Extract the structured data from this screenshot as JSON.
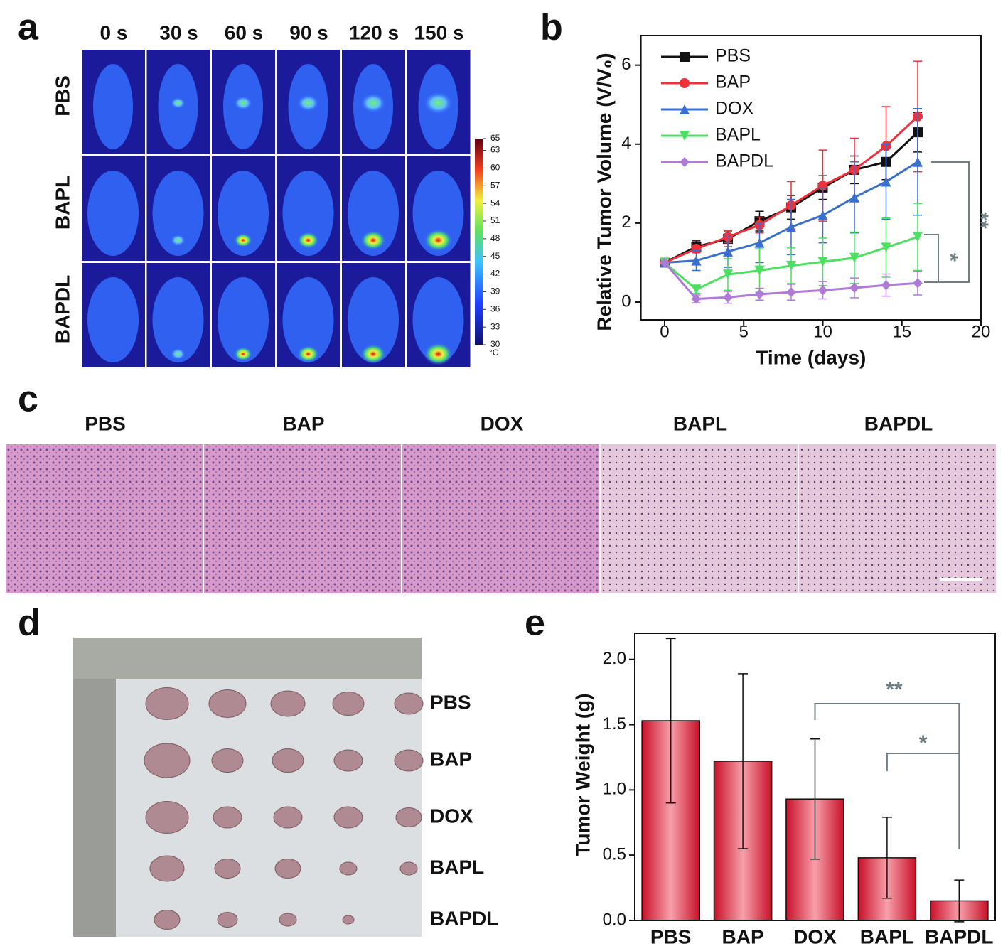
{
  "panel_a": {
    "label": "a",
    "times": [
      "0 s",
      "30 s",
      "60 s",
      "90 s",
      "120 s",
      "150 s"
    ],
    "groups": [
      "PBS",
      "BAPL",
      "BAPDL"
    ],
    "colorbar": {
      "ticks": [
        65,
        63,
        60,
        57,
        54,
        51,
        48,
        45,
        42,
        39,
        36,
        33,
        30
      ],
      "unit": "°C"
    }
  },
  "chart_data": [
    {
      "type": "line",
      "label": "b",
      "x_label": "Time (days)",
      "y_label": "Relative Tumor Volume (V/V₀)",
      "x": [
        0,
        2,
        4,
        6,
        8,
        10,
        12,
        14,
        16
      ],
      "xlim": [
        -1.5,
        20
      ],
      "xticks": [
        0,
        5,
        10,
        15,
        20
      ],
      "ylim": [
        -0.45,
        6.75
      ],
      "yticks": [
        0,
        2,
        4,
        6
      ],
      "legend": "top-left",
      "annotations": [
        "**",
        "*"
      ],
      "series": [
        {
          "name": "PBS",
          "color": "#111111",
          "marker": "square",
          "values": [
            1,
            1.4,
            1.6,
            2.05,
            2.4,
            2.9,
            3.35,
            3.55,
            4.3
          ],
          "errors": [
            0,
            0.15,
            0.2,
            0.25,
            0.3,
            0.3,
            0.35,
            0.45,
            0.5
          ]
        },
        {
          "name": "BAP",
          "color": "#f0303a",
          "marker": "circle",
          "values": [
            1,
            1.35,
            1.65,
            1.95,
            2.45,
            2.95,
            3.35,
            3.95,
            4.7
          ],
          "errors": [
            0,
            0.1,
            0.15,
            0.2,
            0.6,
            0.9,
            0.8,
            1.0,
            1.4
          ]
        },
        {
          "name": "DOX",
          "color": "#3a6fd0",
          "marker": "triangle",
          "values": [
            1,
            1.05,
            1.28,
            1.5,
            1.9,
            2.2,
            2.65,
            3.05,
            3.55
          ],
          "errors": [
            0,
            0.25,
            0.4,
            0.5,
            0.7,
            0.7,
            0.9,
            0.95,
            1.35
          ]
        },
        {
          "name": "BAPL",
          "color": "#4de060",
          "marker": "triangle-down",
          "values": [
            1,
            0.32,
            0.7,
            0.8,
            0.92,
            1.02,
            1.12,
            1.38,
            1.65
          ],
          "errors": [
            0,
            0.1,
            0.4,
            0.55,
            0.45,
            0.6,
            0.65,
            0.75,
            0.85
          ]
        },
        {
          "name": "BAPDL",
          "color": "#b07ad8",
          "marker": "diamond",
          "values": [
            1,
            0.08,
            0.12,
            0.2,
            0.25,
            0.3,
            0.36,
            0.43,
            0.48
          ],
          "errors": [
            0,
            0.1,
            0.15,
            0.15,
            0.2,
            0.22,
            0.25,
            0.28,
            0.3
          ]
        }
      ]
    },
    {
      "type": "bar",
      "label": "e",
      "y_label": "Tumor Weight (g)",
      "categories": [
        "PBS",
        "BAP",
        "DOX",
        "BAPL",
        "BAPDL"
      ],
      "values": [
        1.53,
        1.22,
        0.93,
        0.48,
        0.15
      ],
      "errors": [
        0.63,
        0.67,
        0.46,
        0.31,
        0.16
      ],
      "color": "#e8344a",
      "ylim": [
        0,
        2.2
      ],
      "yticks": [
        {
          "value": 0,
          "label": "0.0"
        },
        0.5,
        {
          "value": 1,
          "label": "1.0"
        },
        1.5,
        {
          "value": 2,
          "label": "2.0"
        }
      ],
      "annotations": [
        "**",
        "*"
      ]
    }
  ],
  "panel_c": {
    "label": "c",
    "groups": [
      "PBS",
      "BAP",
      "DOX",
      "BAPL",
      "BAPDL"
    ]
  },
  "panel_d": {
    "label": "d",
    "groups": [
      "PBS",
      "BAP",
      "DOX",
      "BAPL",
      "BAPDL"
    ]
  }
}
